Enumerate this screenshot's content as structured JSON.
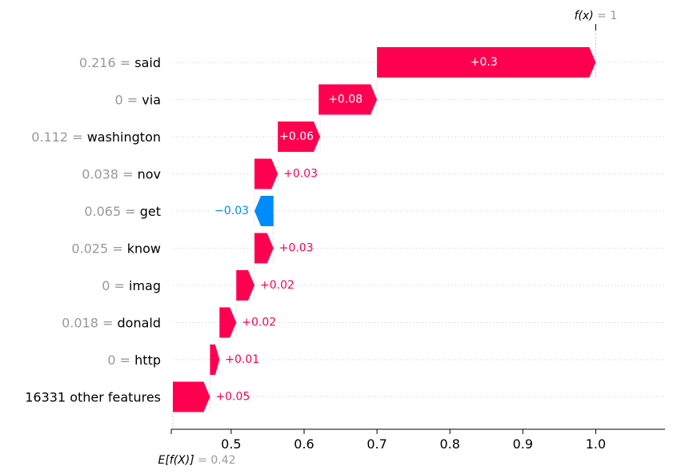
{
  "chart_data": {
    "type": "waterfall",
    "features": [
      {
        "value": "0.216",
        "name": "said",
        "shap": 0.3,
        "label": "+0.3",
        "label_inside": true
      },
      {
        "value": "0",
        "name": "via",
        "shap": 0.08,
        "label": "+0.08",
        "label_inside": true
      },
      {
        "value": "0.112",
        "name": "washington",
        "shap": 0.06,
        "label": "+0.06",
        "label_inside": true
      },
      {
        "value": "0.038",
        "name": "nov",
        "shap": 0.03,
        "label": "+0.03",
        "label_inside": false
      },
      {
        "value": "0.065",
        "name": "get",
        "shap": -0.03,
        "label": "−0.03",
        "label_inside": false
      },
      {
        "value": "0.025",
        "name": "know",
        "shap": 0.03,
        "label": "+0.03",
        "label_inside": false
      },
      {
        "value": "0",
        "name": "imag",
        "shap": 0.02,
        "label": "+0.02",
        "label_inside": false
      },
      {
        "value": "0.018",
        "name": "donald",
        "shap": 0.02,
        "label": "+0.02",
        "label_inside": false
      },
      {
        "value": "0",
        "name": "http",
        "shap": 0.01,
        "label": "+0.01",
        "label_inside": false
      },
      {
        "value": "",
        "name": "16331 other features",
        "shap": 0.05,
        "label": "+0.05",
        "label_inside": false
      }
    ],
    "bars": [
      {
        "start": 0.7,
        "end": 1.0
      },
      {
        "start": 0.62,
        "end": 0.7
      },
      {
        "start": 0.564,
        "end": 0.622
      },
      {
        "start": 0.532,
        "end": 0.564
      },
      {
        "start": 0.558,
        "end": 0.532
      },
      {
        "start": 0.532,
        "end": 0.558
      },
      {
        "start": 0.507,
        "end": 0.532
      },
      {
        "start": 0.484,
        "end": 0.507
      },
      {
        "start": 0.471,
        "end": 0.484
      },
      {
        "start": 0.42,
        "end": 0.471
      }
    ],
    "x_ticks": [
      "0.5",
      "0.6",
      "0.7",
      "0.8",
      "0.9",
      "1.0"
    ],
    "x_tick_values": [
      0.5,
      0.6,
      0.7,
      0.8,
      0.9,
      1.0
    ],
    "xlim": [
      0.42,
      1.095
    ],
    "base_value": 0.42,
    "output_value": 1,
    "base_label": {
      "expr": "E[f(X)]",
      "eq": " = 0.42"
    },
    "output_label": {
      "expr": "f(x)",
      "eq": " = 1"
    },
    "colors": {
      "positive": "#ff0051",
      "negative": "#008bfb",
      "value_text": "#999999",
      "grid": "#cccccc"
    }
  }
}
